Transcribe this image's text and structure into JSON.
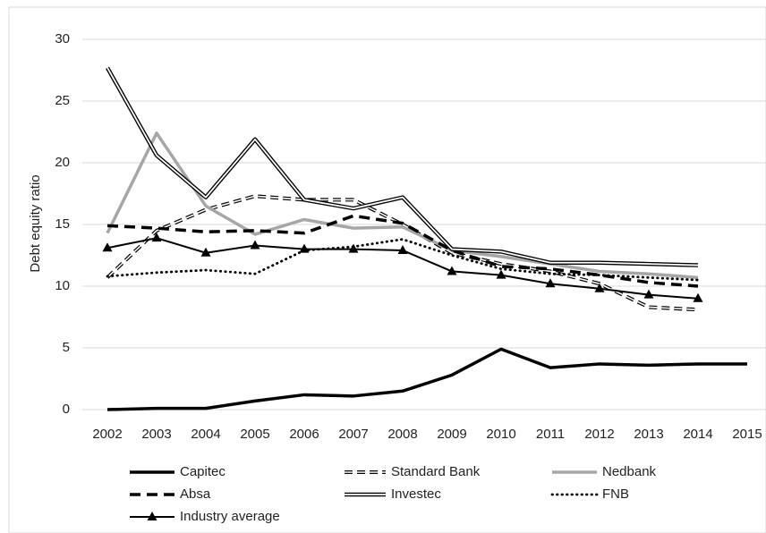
{
  "chart_data": {
    "type": "line",
    "y_label": "Debt equity ratio",
    "categories": [
      "2002",
      "2003",
      "2004",
      "2005",
      "2006",
      "2007",
      "2008",
      "2009",
      "2010",
      "2011",
      "2012",
      "2013",
      "2014",
      "2015"
    ],
    "ylim": [
      0,
      30
    ],
    "yticks": [
      0,
      5,
      10,
      15,
      20,
      25,
      30
    ],
    "grid": true,
    "series": [
      {
        "name": "Capitec",
        "color": "#000000",
        "line_style": "solid",
        "values": [
          0,
          0.1,
          0.1,
          0.7,
          1.2,
          1.1,
          1.5,
          2.8,
          4.9,
          3.4,
          3.7,
          3.6,
          3.7,
          3.7
        ]
      },
      {
        "name": "Standard Bank",
        "color": "#000000",
        "line_style": "double-dashed",
        "values": [
          10.7,
          14.5,
          16.2,
          17.3,
          17.0,
          17.0,
          15.0,
          12.7,
          11.8,
          11.2,
          10.2,
          8.3,
          8.1,
          null
        ]
      },
      {
        "name": "Nedbank",
        "color": "#a6a6a6",
        "line_style": "solid",
        "values": [
          14.3,
          22.4,
          16.5,
          14.2,
          15.4,
          14.7,
          14.8,
          12.9,
          12.4,
          11.8,
          11.2,
          11.0,
          10.7,
          null
        ]
      },
      {
        "name": "Absa",
        "color": "#000000",
        "line_style": "dashed",
        "values": [
          14.9,
          14.7,
          14.4,
          14.5,
          14.3,
          15.7,
          15.1,
          12.9,
          11.6,
          11.4,
          10.9,
          10.3,
          10.0,
          null
        ]
      },
      {
        "name": "Investec",
        "color": "#000000",
        "line_style": "double",
        "values": [
          27.7,
          20.6,
          17.2,
          21.9,
          17.0,
          16.3,
          17.2,
          13.0,
          12.8,
          11.9,
          11.9,
          11.8,
          11.7,
          null
        ]
      },
      {
        "name": "FNB",
        "color": "#000000",
        "line_style": "dotted",
        "values": [
          10.8,
          11.1,
          11.3,
          11.0,
          12.9,
          13.2,
          13.8,
          12.5,
          11.4,
          11.0,
          10.9,
          10.7,
          10.5,
          null
        ]
      },
      {
        "name": "Industry average",
        "color": "#000000",
        "line_style": "thin",
        "marker": "triangle",
        "values": [
          13.1,
          13.9,
          12.7,
          13.3,
          13.0,
          13.0,
          12.9,
          11.2,
          10.9,
          10.2,
          9.8,
          9.3,
          9.0,
          null
        ]
      }
    ]
  }
}
